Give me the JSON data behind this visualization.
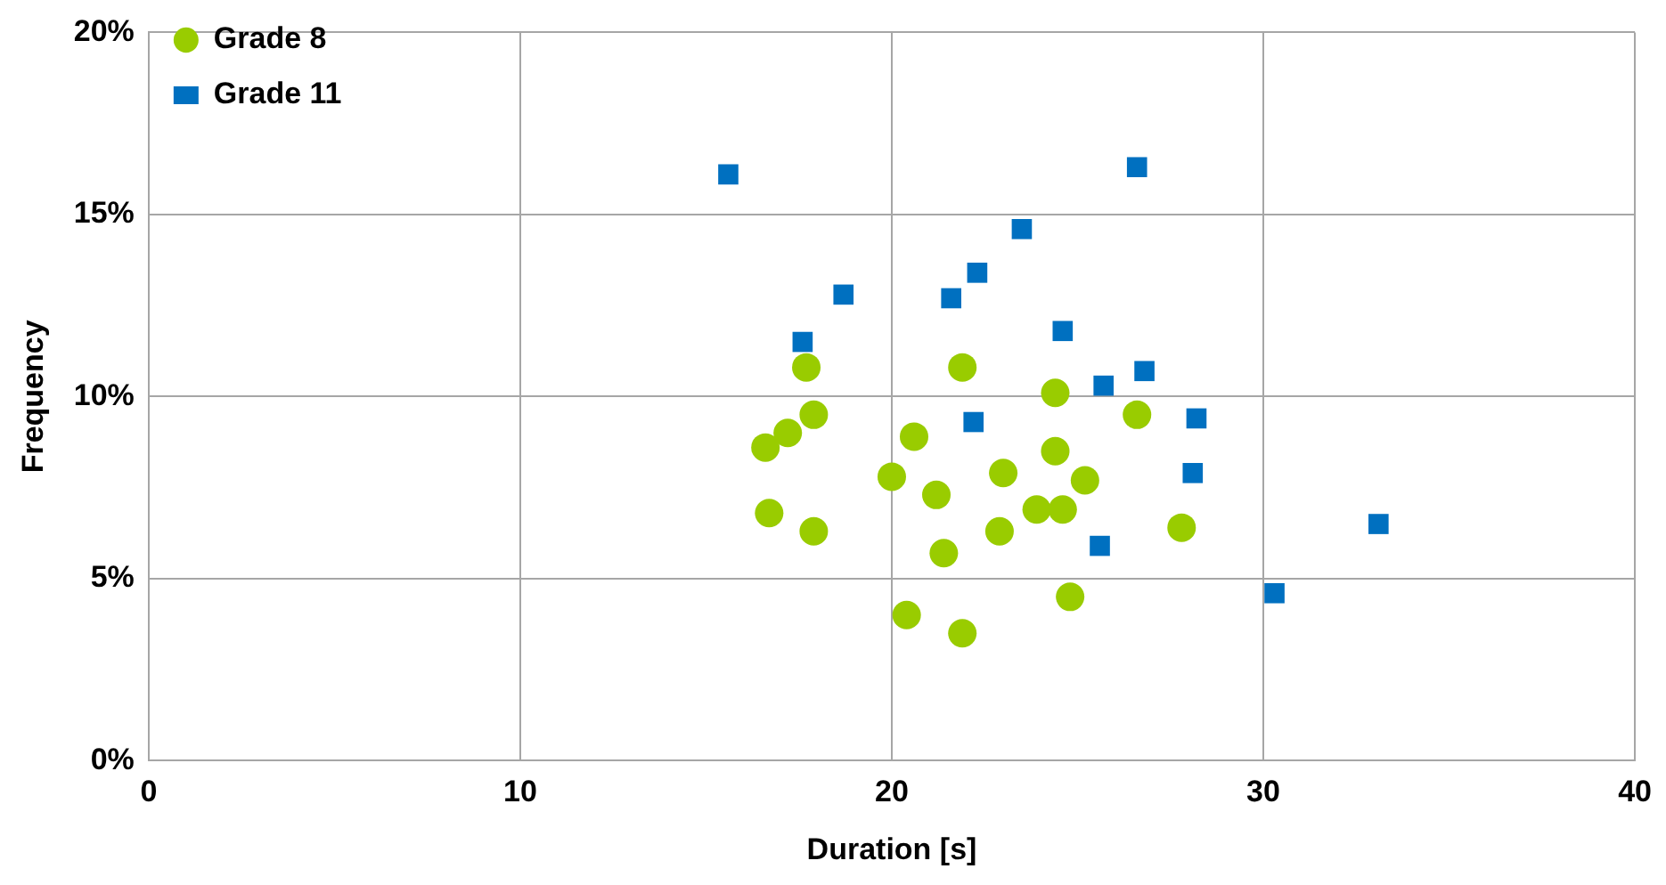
{
  "chart_data": {
    "type": "scatter",
    "xlabel": "Duration [s]",
    "ylabel": "Frequency",
    "xlim": [
      0,
      40
    ],
    "xticks": [
      0,
      10,
      20,
      30,
      40
    ],
    "ylim": [
      0,
      20
    ],
    "yticks": [
      {
        "value": 0,
        "label": "0%"
      },
      {
        "value": 5,
        "label": "5%"
      },
      {
        "value": 10,
        "label": "10%"
      },
      {
        "value": 15,
        "label": "15%"
      },
      {
        "value": 20,
        "label": "20%"
      }
    ],
    "grid": true,
    "legend": "top left",
    "series": [
      {
        "name": "Grade 8",
        "color": "#99cc00",
        "marker": "circle",
        "x": [
          16.6,
          17.2,
          17.9,
          17.7,
          16.7,
          17.9,
          20.0,
          20.6,
          21.2,
          21.4,
          20.4,
          21.9,
          21.9,
          23.0,
          22.9,
          24.4,
          24.4,
          23.9,
          24.6,
          25.2,
          24.8,
          26.6,
          27.8
        ],
        "values": [
          8.6,
          9.0,
          9.5,
          10.8,
          6.8,
          6.3,
          7.8,
          8.9,
          7.3,
          5.7,
          4.0,
          3.5,
          10.8,
          7.9,
          6.3,
          10.1,
          8.5,
          6.9,
          6.9,
          7.7,
          4.5,
          9.5,
          6.4
        ]
      },
      {
        "name": "Grade 11",
        "color": "#0070c0",
        "marker": "square",
        "x": [
          15.6,
          26.6,
          23.5,
          22.3,
          21.6,
          18.7,
          17.6,
          24.6,
          26.8,
          25.7,
          22.2,
          28.2,
          28.1,
          25.6,
          30.3,
          33.1
        ],
        "values": [
          16.1,
          16.3,
          14.6,
          13.4,
          12.7,
          12.8,
          11.5,
          11.8,
          10.7,
          10.3,
          9.3,
          9.4,
          7.9,
          5.9,
          4.6,
          6.5
        ]
      }
    ]
  }
}
